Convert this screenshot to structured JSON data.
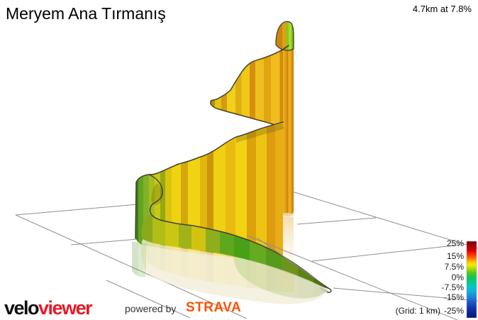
{
  "page": {
    "title": "Meryem Ana Tırmanış",
    "stats": "4.7km at 7.8%"
  },
  "legend": {
    "ticks": [
      "25%",
      "15%",
      "7.5%",
      "0%",
      "-7.5%",
      "-15%",
      "-25%"
    ],
    "grid_note": "(Grid: 1 km)"
  },
  "footer": {
    "logo_velo": "velo",
    "logo_viewer": "viewer",
    "powered_by": "powered by",
    "strava": "STRAVA"
  },
  "colors": {
    "background": "#ffffff",
    "grid_line": "#8f8f8f",
    "ribbon_outline": "#44412f",
    "title_text": "#000000",
    "logo_velo": "#111111",
    "logo_viewer": "#e51c2b",
    "powered_by": "#333333",
    "strava_orange": "#fc5200"
  },
  "chart_data": {
    "type": "area",
    "subtype": "3d-elevation-ribbon",
    "title": "Meryem Ana Tırmanış",
    "summary": "4.7km at 7.8%",
    "distance_km": 4.7,
    "avg_gradient_pct": 7.8,
    "x_km": [
      0,
      0.5,
      1,
      1.5,
      2,
      2.5,
      3,
      3.5,
      4,
      4.5,
      4.7
    ],
    "series": [
      {
        "name": "gradient_pct_estimated_from_ribbon_colors",
        "values": [
          3,
          5,
          7,
          9,
          8,
          10,
          9,
          8,
          9,
          10,
          5
        ]
      }
    ],
    "colorbar": {
      "ticks_pct": [
        25,
        15,
        7.5,
        0,
        -7.5,
        -15,
        -25
      ],
      "grid_note": "(Grid: 1 km)"
    },
    "grid_cell": "1 km",
    "legend_position": "bottom-right"
  },
  "gradients": {
    "column": [
      [
        0,
        "#9a6a06"
      ],
      [
        0.1,
        "#9a6a06"
      ],
      [
        0.1,
        "#c8860a"
      ],
      [
        0.2,
        "#c8860a"
      ],
      [
        0.2,
        "#eeb01c"
      ],
      [
        0.33,
        "#eeb01c"
      ],
      [
        0.33,
        "#e2a014"
      ],
      [
        0.48,
        "#e2a014"
      ],
      [
        0.48,
        "#cf8a0e"
      ],
      [
        0.6,
        "#cf8a0e"
      ],
      [
        0.6,
        "#f0ac1e"
      ],
      [
        0.75,
        "#f0ac1e"
      ],
      [
        0.75,
        "#dd9712"
      ],
      [
        0.88,
        "#dd9712"
      ],
      [
        0.88,
        "#bf7c0a"
      ],
      [
        1,
        "#bf7c0a"
      ]
    ],
    "peak": [
      [
        0,
        "#c8880e"
      ],
      [
        0.2,
        "#c8880e"
      ],
      [
        0.2,
        "#dfa014"
      ],
      [
        0.45,
        "#dfa014"
      ],
      [
        0.45,
        "#8cc41e"
      ],
      [
        0.62,
        "#8cc41e"
      ],
      [
        0.62,
        "#a6de2c"
      ],
      [
        0.8,
        "#a6de2c"
      ],
      [
        0.8,
        "#7cb818"
      ],
      [
        1,
        "#7cb818"
      ]
    ],
    "upper": [
      [
        0,
        "#b09408"
      ],
      [
        0.066,
        "#b09408"
      ],
      [
        0.066,
        "#e4c214"
      ],
      [
        0.14,
        "#e4c214"
      ],
      [
        0.14,
        "#cf9c10"
      ],
      [
        0.21,
        "#cf9c10"
      ],
      [
        0.21,
        "#f2cf1a"
      ],
      [
        0.31,
        "#f2cf1a"
      ],
      [
        0.31,
        "#dfae12"
      ],
      [
        0.38,
        "#dfae12"
      ],
      [
        0.38,
        "#f0c816"
      ],
      [
        0.475,
        "#f0c816"
      ],
      [
        0.475,
        "#d78e10"
      ],
      [
        0.54,
        "#d78e10"
      ],
      [
        0.54,
        "#eec01c"
      ],
      [
        0.64,
        "#eec01c"
      ],
      [
        0.64,
        "#e2a412"
      ],
      [
        0.725,
        "#e2a412"
      ],
      [
        0.725,
        "#f0bc1e"
      ],
      [
        0.83,
        "#f0bc1e"
      ],
      [
        0.83,
        "#cf8d0e"
      ],
      [
        0.91,
        "#cf8d0e"
      ],
      [
        0.91,
        "#e8a816"
      ],
      [
        1,
        "#e8a816"
      ]
    ],
    "broad": [
      [
        0,
        "#3f7d14"
      ],
      [
        0.033,
        "#3f7d14"
      ],
      [
        0.033,
        "#63a322"
      ],
      [
        0.066,
        "#63a322"
      ],
      [
        0.066,
        "#82b22a"
      ],
      [
        0.104,
        "#82b22a"
      ],
      [
        0.104,
        "#a8bc1e"
      ],
      [
        0.142,
        "#a8bc1e"
      ],
      [
        0.142,
        "#c6c816"
      ],
      [
        0.18,
        "#c6c816"
      ],
      [
        0.18,
        "#96a812"
      ],
      [
        0.212,
        "#96a812"
      ],
      [
        0.212,
        "#dac50e"
      ],
      [
        0.255,
        "#dac50e"
      ],
      [
        0.255,
        "#eed312"
      ],
      [
        0.316,
        "#eed312"
      ],
      [
        0.316,
        "#d2a80c"
      ],
      [
        0.363,
        "#d2a80c"
      ],
      [
        0.363,
        "#f0d414"
      ],
      [
        0.443,
        "#f0d414"
      ],
      [
        0.443,
        "#e2b60e"
      ],
      [
        0.49,
        "#e2b60e"
      ],
      [
        0.49,
        "#c8980a"
      ],
      [
        0.533,
        "#c8980a"
      ],
      [
        0.533,
        "#f0d012"
      ],
      [
        0.613,
        "#f0d012"
      ],
      [
        0.613,
        "#e7bb10"
      ],
      [
        0.68,
        "#e7bb10"
      ],
      [
        0.68,
        "#f2d214"
      ],
      [
        0.755,
        "#f2d214"
      ],
      [
        0.755,
        "#dca20c"
      ],
      [
        0.816,
        "#dca20c"
      ],
      [
        0.816,
        "#eec414"
      ],
      [
        0.887,
        "#eec414"
      ],
      [
        0.887,
        "#dd9b10"
      ],
      [
        0.943,
        "#dd9b10"
      ],
      [
        0.943,
        "#e8ae16"
      ],
      [
        1,
        "#e8ae16"
      ]
    ],
    "tail": [
      [
        0,
        "#8aaa1c"
      ],
      [
        0.07,
        "#8aaa1c"
      ],
      [
        0.07,
        "#b0be16"
      ],
      [
        0.136,
        "#b0be16"
      ],
      [
        0.136,
        "#cbc612"
      ],
      [
        0.206,
        "#cbc612"
      ],
      [
        0.206,
        "#9eb418"
      ],
      [
        0.272,
        "#9eb418"
      ],
      [
        0.272,
        "#d2c312"
      ],
      [
        0.346,
        "#d2c312"
      ],
      [
        0.346,
        "#8fae1c"
      ],
      [
        0.42,
        "#8fae1c"
      ],
      [
        0.42,
        "#5fa81e"
      ],
      [
        0.493,
        "#5fa81e"
      ],
      [
        0.493,
        "#48a016"
      ],
      [
        0.574,
        "#48a016"
      ],
      [
        0.574,
        "#66aa22"
      ],
      [
        0.658,
        "#66aa22"
      ],
      [
        0.658,
        "#579a1c"
      ],
      [
        0.743,
        "#579a1c"
      ],
      [
        0.743,
        "#6e9420"
      ],
      [
        0.824,
        "#6e9420"
      ],
      [
        0.824,
        "#5c8414"
      ],
      [
        0.905,
        "#5c8414"
      ],
      [
        0.905,
        "#4d7210"
      ],
      [
        0.956,
        "#4d7210"
      ],
      [
        0.956,
        "#406a0e"
      ],
      [
        1,
        "#406a0e"
      ]
    ],
    "legend": [
      [
        0,
        "#7c0000"
      ],
      [
        0.06,
        "#a80000"
      ],
      [
        0.12,
        "#dc0000"
      ],
      [
        0.18,
        "#fa3800"
      ],
      [
        0.23,
        "#ff8000"
      ],
      [
        0.27,
        "#ffc400"
      ],
      [
        0.31,
        "#f0ec00"
      ],
      [
        0.36,
        "#aadc00"
      ],
      [
        0.42,
        "#46c828"
      ],
      [
        0.48,
        "#14c455"
      ],
      [
        0.54,
        "#06c894"
      ],
      [
        0.6,
        "#00c8c8"
      ],
      [
        0.66,
        "#14aadc"
      ],
      [
        0.73,
        "#1e82d8"
      ],
      [
        0.8,
        "#1e55c8"
      ],
      [
        0.88,
        "#1230aa"
      ],
      [
        1,
        "#041278"
      ]
    ],
    "refl": [
      [
        0,
        "rgba(242,208,140,0.7)"
      ],
      [
        0.3,
        "rgba(248,234,200,0.5)"
      ],
      [
        1,
        "rgba(255,255,255,0)"
      ]
    ]
  }
}
